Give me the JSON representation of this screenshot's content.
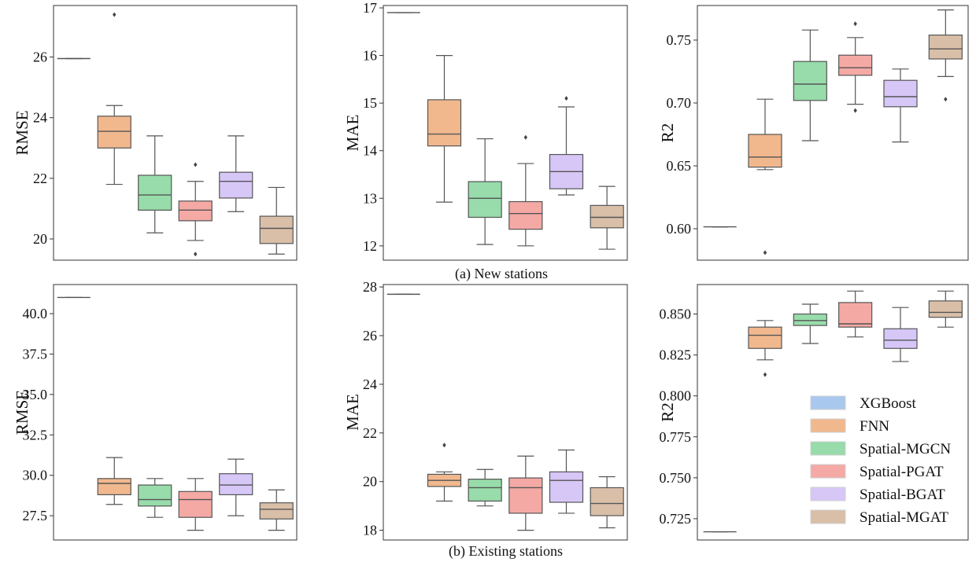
{
  "captions": {
    "top": "(a) New stations",
    "bottom": "(b) Existing stations"
  },
  "legend": {
    "entries": [
      "XGBoost",
      "FNN",
      "Spatial-MGCN",
      "Spatial-PGAT",
      "Spatial-BGAT",
      "Spatial-MGAT"
    ],
    "colors": [
      "#a9c8ee",
      "#f1b88e",
      "#97dcaa",
      "#f4a9a5",
      "#d6c7f7",
      "#d9bfa8"
    ]
  },
  "chart_data": [
    {
      "type": "box",
      "panel": "a-rmse",
      "ylabel": "RMSE",
      "ylim": [
        19.3,
        27.7
      ],
      "ticks": [
        20,
        22,
        24,
        26
      ],
      "tick_labels": [
        "20",
        "22",
        "24",
        "26"
      ],
      "series": [
        {
          "name": "XGBoost",
          "whislo": 25.95,
          "q1": 25.95,
          "med": 25.95,
          "q3": 25.95,
          "whishi": 25.95,
          "fliers": []
        },
        {
          "name": "FNN",
          "whislo": 21.8,
          "q1": 23.0,
          "med": 23.55,
          "q3": 24.05,
          "whishi": 24.4,
          "fliers": [
            27.4
          ]
        },
        {
          "name": "Spatial-MGCN",
          "whislo": 20.2,
          "q1": 20.95,
          "med": 21.45,
          "q3": 22.1,
          "whishi": 23.4,
          "fliers": []
        },
        {
          "name": "Spatial-PGAT",
          "whislo": 19.95,
          "q1": 20.6,
          "med": 20.95,
          "q3": 21.25,
          "whishi": 21.9,
          "fliers": [
            22.45,
            19.5
          ]
        },
        {
          "name": "Spatial-BGAT",
          "whislo": 20.9,
          "q1": 21.35,
          "med": 21.9,
          "q3": 22.2,
          "whishi": 23.4,
          "fliers": []
        },
        {
          "name": "Spatial-MGAT",
          "whislo": 19.5,
          "q1": 19.85,
          "med": 20.35,
          "q3": 20.75,
          "whishi": 21.7,
          "fliers": []
        }
      ]
    },
    {
      "type": "box",
      "panel": "a-mae",
      "ylabel": "MAE",
      "ylim": [
        11.7,
        17.05
      ],
      "ticks": [
        12,
        13,
        14,
        15,
        16,
        17
      ],
      "tick_labels": [
        "12",
        "13",
        "14",
        "15",
        "16",
        "17"
      ],
      "series": [
        {
          "name": "XGBoost",
          "whislo": 16.9,
          "q1": 16.9,
          "med": 16.9,
          "q3": 16.9,
          "whishi": 16.9,
          "fliers": []
        },
        {
          "name": "FNN",
          "whislo": 12.92,
          "q1": 14.1,
          "med": 14.35,
          "q3": 15.07,
          "whishi": 16.0,
          "fliers": []
        },
        {
          "name": "Spatial-MGCN",
          "whislo": 12.03,
          "q1": 12.6,
          "med": 13.0,
          "q3": 13.35,
          "whishi": 14.25,
          "fliers": []
        },
        {
          "name": "Spatial-PGAT",
          "whislo": 12.0,
          "q1": 12.35,
          "med": 12.68,
          "q3": 12.93,
          "whishi": 13.73,
          "fliers": [
            14.28
          ]
        },
        {
          "name": "Spatial-BGAT",
          "whislo": 13.07,
          "q1": 13.2,
          "med": 13.56,
          "q3": 13.92,
          "whishi": 14.92,
          "fliers": [
            15.1
          ]
        },
        {
          "name": "Spatial-MGAT",
          "whislo": 11.93,
          "q1": 12.38,
          "med": 12.6,
          "q3": 12.85,
          "whishi": 13.25,
          "fliers": []
        }
      ]
    },
    {
      "type": "box",
      "panel": "a-r2",
      "ylabel": "R2",
      "ylim": [
        0.575,
        0.7775
      ],
      "ticks": [
        0.6,
        0.65,
        0.7,
        0.75
      ],
      "tick_labels": [
        "0.60",
        "0.65",
        "0.70",
        "0.75"
      ],
      "series": [
        {
          "name": "XGBoost",
          "whislo": 0.6015,
          "q1": 0.6015,
          "med": 0.6015,
          "q3": 0.6015,
          "whishi": 0.6015,
          "fliers": []
        },
        {
          "name": "FNN",
          "whislo": 0.647,
          "q1": 0.649,
          "med": 0.657,
          "q3": 0.675,
          "whishi": 0.703,
          "fliers": [
            0.581
          ]
        },
        {
          "name": "Spatial-MGCN",
          "whislo": 0.67,
          "q1": 0.702,
          "med": 0.715,
          "q3": 0.733,
          "whishi": 0.758,
          "fliers": []
        },
        {
          "name": "Spatial-PGAT",
          "whislo": 0.699,
          "q1": 0.722,
          "med": 0.728,
          "q3": 0.738,
          "whishi": 0.752,
          "fliers": [
            0.763,
            0.694
          ]
        },
        {
          "name": "Spatial-BGAT",
          "whislo": 0.669,
          "q1": 0.697,
          "med": 0.705,
          "q3": 0.718,
          "whishi": 0.727,
          "fliers": []
        },
        {
          "name": "Spatial-MGAT",
          "whislo": 0.721,
          "q1": 0.735,
          "med": 0.743,
          "q3": 0.754,
          "whishi": 0.774,
          "fliers": [
            0.703
          ]
        }
      ]
    },
    {
      "type": "box",
      "panel": "b-rmse",
      "ylabel": "RMSE",
      "ylim": [
        26.0,
        41.8
      ],
      "ticks": [
        27.5,
        30.0,
        32.5,
        35.0,
        37.5,
        40.0
      ],
      "tick_labels": [
        "27.5",
        "30.0",
        "32.5",
        "35.0",
        "37.5",
        "40.0"
      ],
      "series": [
        {
          "name": "XGBoost",
          "whislo": 41.0,
          "q1": 41.0,
          "med": 41.0,
          "q3": 41.0,
          "whishi": 41.0,
          "fliers": []
        },
        {
          "name": "FNN",
          "whislo": 28.2,
          "q1": 28.8,
          "med": 29.5,
          "q3": 29.8,
          "whishi": 31.1,
          "fliers": []
        },
        {
          "name": "Spatial-MGCN",
          "whislo": 27.4,
          "q1": 28.1,
          "med": 28.5,
          "q3": 29.4,
          "whishi": 29.8,
          "fliers": []
        },
        {
          "name": "Spatial-PGAT",
          "whislo": 26.6,
          "q1": 27.4,
          "med": 28.5,
          "q3": 29.0,
          "whishi": 29.8,
          "fliers": []
        },
        {
          "name": "Spatial-BGAT",
          "whislo": 27.5,
          "q1": 28.8,
          "med": 29.4,
          "q3": 30.1,
          "whishi": 31.0,
          "fliers": []
        },
        {
          "name": "Spatial-MGAT",
          "whislo": 26.6,
          "q1": 27.3,
          "med": 27.9,
          "q3": 28.3,
          "whishi": 29.1,
          "fliers": []
        }
      ]
    },
    {
      "type": "box",
      "panel": "b-mae",
      "ylabel": "MAE",
      "ylim": [
        17.6,
        28.1
      ],
      "ticks": [
        18,
        20,
        22,
        24,
        26,
        28
      ],
      "tick_labels": [
        "18",
        "20",
        "22",
        "24",
        "26",
        "28"
      ],
      "series": [
        {
          "name": "XGBoost",
          "whislo": 27.7,
          "q1": 27.7,
          "med": 27.7,
          "q3": 27.7,
          "whishi": 27.7,
          "fliers": []
        },
        {
          "name": "FNN",
          "whislo": 19.2,
          "q1": 19.8,
          "med": 20.05,
          "q3": 20.3,
          "whishi": 20.4,
          "fliers": [
            21.5
          ]
        },
        {
          "name": "Spatial-MGCN",
          "whislo": 19.0,
          "q1": 19.2,
          "med": 19.75,
          "q3": 20.1,
          "whishi": 20.5,
          "fliers": []
        },
        {
          "name": "Spatial-PGAT",
          "whislo": 18.0,
          "q1": 18.7,
          "med": 19.75,
          "q3": 20.15,
          "whishi": 21.05,
          "fliers": []
        },
        {
          "name": "Spatial-BGAT",
          "whislo": 18.7,
          "q1": 19.15,
          "med": 20.05,
          "q3": 20.4,
          "whishi": 21.3,
          "fliers": []
        },
        {
          "name": "Spatial-MGAT",
          "whislo": 18.1,
          "q1": 18.6,
          "med": 19.1,
          "q3": 19.75,
          "whishi": 20.2,
          "fliers": []
        }
      ]
    },
    {
      "type": "box",
      "panel": "b-r2",
      "ylabel": "R2",
      "ylim": [
        0.712,
        0.868
      ],
      "ticks": [
        0.725,
        0.75,
        0.775,
        0.8,
        0.825,
        0.85
      ],
      "tick_labels": [
        "0.725",
        "0.750",
        "0.775",
        "0.800",
        "0.825",
        "0.850"
      ],
      "series": [
        {
          "name": "XGBoost",
          "whislo": 0.717,
          "q1": 0.717,
          "med": 0.717,
          "q3": 0.717,
          "whishi": 0.717,
          "fliers": []
        },
        {
          "name": "FNN",
          "whislo": 0.822,
          "q1": 0.829,
          "med": 0.837,
          "q3": 0.842,
          "whishi": 0.846,
          "fliers": [
            0.813
          ]
        },
        {
          "name": "Spatial-MGCN",
          "whislo": 0.832,
          "q1": 0.843,
          "med": 0.846,
          "q3": 0.85,
          "whishi": 0.856,
          "fliers": []
        },
        {
          "name": "Spatial-PGAT",
          "whislo": 0.836,
          "q1": 0.842,
          "med": 0.844,
          "q3": 0.857,
          "whishi": 0.864,
          "fliers": []
        },
        {
          "name": "Spatial-BGAT",
          "whislo": 0.821,
          "q1": 0.829,
          "med": 0.834,
          "q3": 0.841,
          "whishi": 0.854,
          "fliers": []
        },
        {
          "name": "Spatial-MGAT",
          "whislo": 0.842,
          "q1": 0.848,
          "med": 0.851,
          "q3": 0.858,
          "whishi": 0.864,
          "fliers": []
        }
      ]
    }
  ]
}
